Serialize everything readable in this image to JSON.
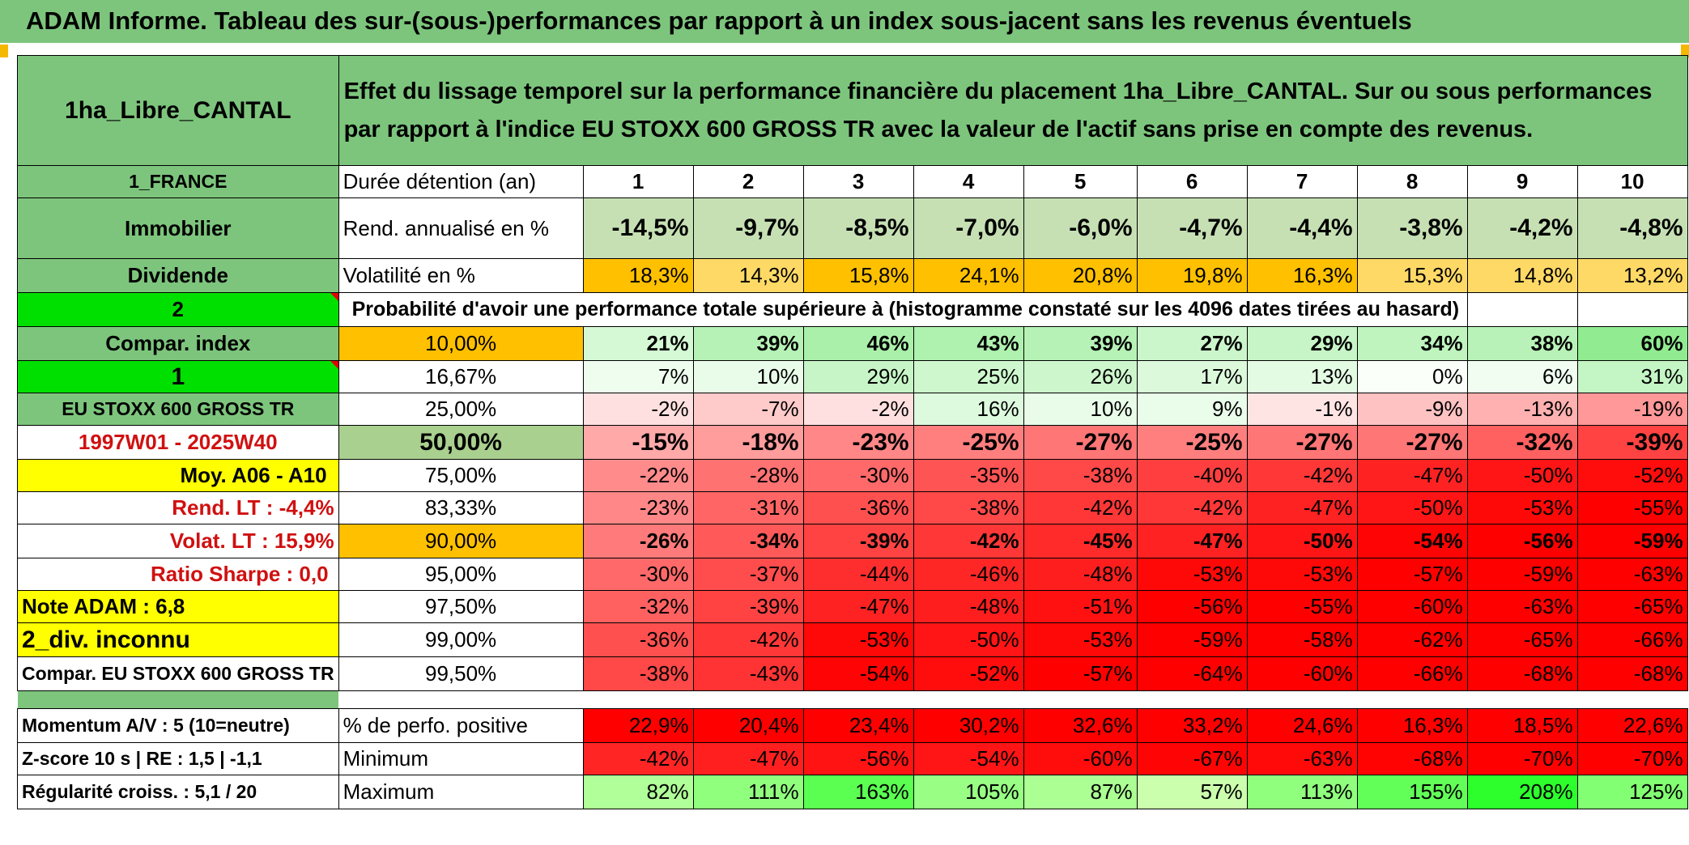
{
  "title": "ADAM Informe. Tableau des sur-(sous-)performances par rapport à un index sous-jacent sans les revenus éventuels",
  "header": {
    "fund": "1ha_Libre_CANTAL",
    "description": "Effet du lissage temporel sur la performance financière du placement 1ha_Libre_CANTAL. Sur ou sous performances par rapport à l'indice EU STOXX 600 GROSS TR avec la valeur de l'actif sans prise en compte des revenus."
  },
  "left": {
    "country": "1_FRANCE",
    "category": "Immobilier",
    "income": "Dividende",
    "sel1": "2",
    "compar_index": "Compar. index",
    "sel2": "1",
    "index_name": "EU STOXX 600 GROSS TR",
    "period": "1997W01 - 2025W40",
    "moy": "Moy. A06 - A10",
    "rend_lt": "Rend. LT :    -4,4%",
    "volat_lt": "Volat. LT :    15,9%",
    "sharpe": "Ratio Sharpe :    0,0",
    "note": "Note ADAM : 6,8",
    "div": "2_div. inconnu",
    "compar": "Compar. EU STOXX 600 GROSS TR",
    "momentum": "Momentum A/V : 5 (10=neutre)",
    "zscore": "Z-score 10 s | RE : 1,5 | -1,1",
    "regularite": "Régularité croiss. : 5,1 / 20"
  },
  "labels": {
    "duree": "Durée détention (an)",
    "rend": "Rend. annualisé en %",
    "vol": "Volatilité en %",
    "proba": "Probabilité d'avoir une performance totale supérieure à (histogramme constaté sur les 4096 dates tirées au hasard)",
    "pct_pos": "% de perfo. positive",
    "min": "Minimum",
    "max": "Maximum"
  },
  "years": [
    "1",
    "2",
    "3",
    "4",
    "5",
    "6",
    "7",
    "8",
    "9",
    "10"
  ],
  "rend": [
    "-14,5%",
    "-9,7%",
    "-8,5%",
    "-7,0%",
    "-6,0%",
    "-4,7%",
    "-4,4%",
    "-3,8%",
    "-4,2%",
    "-4,8%"
  ],
  "vol": [
    "18,3%",
    "14,3%",
    "15,8%",
    "24,1%",
    "20,8%",
    "19,8%",
    "16,3%",
    "15,3%",
    "14,8%",
    "13,2%"
  ],
  "prob_rows": [
    {
      "thr": "10,00%",
      "vals": [
        "21%",
        "39%",
        "46%",
        "43%",
        "39%",
        "27%",
        "29%",
        "34%",
        "38%",
        "60%"
      ]
    },
    {
      "thr": "16,67%",
      "vals": [
        "7%",
        "10%",
        "29%",
        "25%",
        "26%",
        "17%",
        "13%",
        "0%",
        "6%",
        "31%"
      ]
    },
    {
      "thr": "25,00%",
      "vals": [
        "-2%",
        "-7%",
        "-2%",
        "16%",
        "10%",
        "9%",
        "-1%",
        "-9%",
        "-13%",
        "-19%"
      ]
    },
    {
      "thr": "50,00%",
      "vals": [
        "-15%",
        "-18%",
        "-23%",
        "-25%",
        "-27%",
        "-25%",
        "-27%",
        "-27%",
        "-32%",
        "-39%"
      ]
    },
    {
      "thr": "75,00%",
      "vals": [
        "-22%",
        "-28%",
        "-30%",
        "-35%",
        "-38%",
        "-40%",
        "-42%",
        "-47%",
        "-50%",
        "-52%"
      ]
    },
    {
      "thr": "83,33%",
      "vals": [
        "-23%",
        "-31%",
        "-36%",
        "-38%",
        "-42%",
        "-42%",
        "-47%",
        "-50%",
        "-53%",
        "-55%"
      ]
    },
    {
      "thr": "90,00%",
      "vals": [
        "-26%",
        "-34%",
        "-39%",
        "-42%",
        "-45%",
        "-47%",
        "-50%",
        "-54%",
        "-56%",
        "-59%"
      ]
    },
    {
      "thr": "95,00%",
      "vals": [
        "-30%",
        "-37%",
        "-44%",
        "-46%",
        "-48%",
        "-53%",
        "-53%",
        "-57%",
        "-59%",
        "-63%"
      ]
    },
    {
      "thr": "97,50%",
      "vals": [
        "-32%",
        "-39%",
        "-47%",
        "-48%",
        "-51%",
        "-56%",
        "-55%",
        "-60%",
        "-63%",
        "-65%"
      ]
    },
    {
      "thr": "99,00%",
      "vals": [
        "-36%",
        "-42%",
        "-53%",
        "-50%",
        "-53%",
        "-59%",
        "-58%",
        "-62%",
        "-65%",
        "-66%"
      ]
    },
    {
      "thr": "99,50%",
      "vals": [
        "-38%",
        "-43%",
        "-54%",
        "-52%",
        "-57%",
        "-64%",
        "-60%",
        "-66%",
        "-68%",
        "-68%"
      ]
    }
  ],
  "pct_pos": [
    "22,9%",
    "20,4%",
    "23,4%",
    "30,2%",
    "32,6%",
    "33,2%",
    "24,6%",
    "16,3%",
    "18,5%",
    "22,6%"
  ],
  "min": [
    "-42%",
    "-47%",
    "-56%",
    "-54%",
    "-60%",
    "-67%",
    "-63%",
    "-68%",
    "-70%",
    "-70%"
  ],
  "max": [
    "82%",
    "111%",
    "163%",
    "105%",
    "87%",
    "57%",
    "113%",
    "155%",
    "208%",
    "125%"
  ],
  "colors": {
    "header_green": "#7dc57d",
    "bright_green": "#00e000",
    "highlight_yellow": "#ffff00",
    "highlight_orange": "#ffc000",
    "rend_green": "#c6e0b4",
    "label_red": "#d01010"
  }
}
